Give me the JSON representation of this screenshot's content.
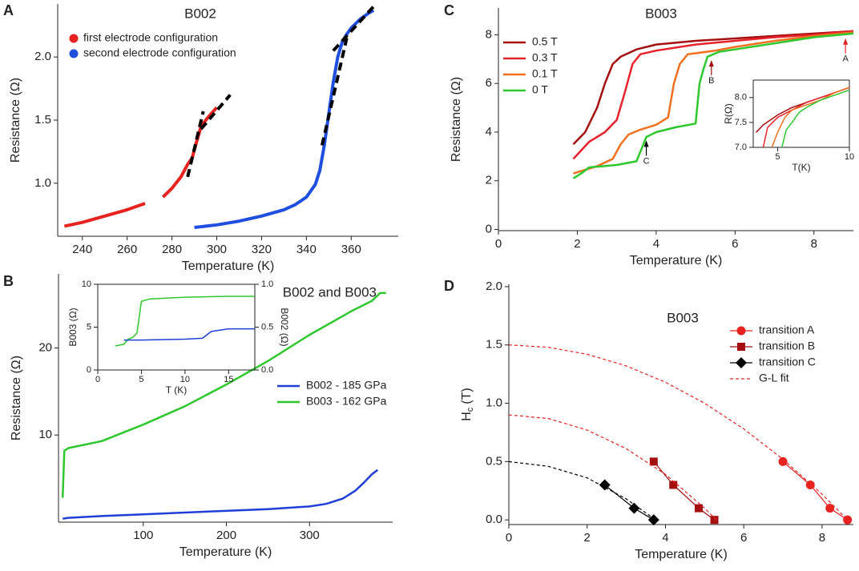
{
  "chart_data": [
    {
      "type": "line",
      "panel": "A",
      "title": "B002",
      "xlabel": "Temperature (K)",
      "ylabel": "Resistance (Ω)",
      "xlim": [
        229,
        381
      ],
      "xticks": [
        240,
        260,
        280,
        300,
        320,
        340,
        360
      ],
      "ylim": [
        0.58,
        2.42
      ],
      "yticks": [
        {
          "value": 1.0,
          "label": "1.0"
        },
        {
          "value": 1.5,
          "label": "1.5"
        },
        {
          "value": 2.0,
          "label": "2.0"
        }
      ],
      "legend": "upper left",
      "legend_marker": "circle",
      "series": [
        {
          "name": "first electrode configuration",
          "color": "#e8221e",
          "x": [
            232,
            240,
            250,
            260,
            268,
            272,
            276,
            280,
            284,
            287,
            289,
            291,
            293,
            296,
            300
          ],
          "values": [
            0.66,
            0.69,
            0.74,
            0.79,
            0.84,
            null,
            0.89,
            0.96,
            1.05,
            1.15,
            1.2,
            1.33,
            1.45,
            1.52,
            1.6
          ]
        },
        {
          "name": "second electrode configuration",
          "color": "#1f4fe0",
          "x": [
            290,
            300,
            310,
            320,
            330,
            335,
            340,
            344,
            346,
            348,
            350,
            352,
            354,
            356,
            358,
            360,
            364,
            368,
            370
          ],
          "values": [
            0.65,
            0.67,
            0.7,
            0.74,
            0.79,
            0.83,
            0.89,
            0.99,
            1.1,
            1.3,
            1.55,
            1.8,
            2.0,
            2.12,
            2.18,
            2.23,
            2.3,
            2.35,
            2.37
          ]
        },
        {
          "color": "#000000",
          "dashed": true,
          "x": [
            287,
            294
          ],
          "values": [
            1.05,
            1.57
          ]
        },
        {
          "color": "#000000",
          "dashed": true,
          "x": [
            293,
            306
          ],
          "values": [
            1.43,
            1.7
          ]
        },
        {
          "color": "#000000",
          "dashed": true,
          "x": [
            347,
            358
          ],
          "values": [
            1.3,
            2.15
          ]
        },
        {
          "color": "#000000",
          "dashed": true,
          "x": [
            352,
            370
          ],
          "values": [
            2.05,
            2.4
          ]
        }
      ]
    },
    {
      "type": "line",
      "panel": "B",
      "title": "B002 and B003",
      "xlabel": "Temperature (K)",
      "ylabel": "Resistance (Ω)",
      "xlim": [
        -2,
        400
      ],
      "xticks": [
        100,
        200,
        300
      ],
      "ylim": [
        0,
        28.5
      ],
      "yticks": [
        10,
        20
      ],
      "legend": "center right",
      "legend_marker": "line",
      "series": [
        {
          "name": "B002 - 185 GPa",
          "color": "#1f3fd8",
          "x": [
            3,
            10,
            50,
            100,
            150,
            200,
            250,
            300,
            320,
            340,
            355,
            365,
            375,
            382
          ],
          "values": [
            0.4,
            0.5,
            0.7,
            0.9,
            1.1,
            1.3,
            1.5,
            1.8,
            2.1,
            2.7,
            3.6,
            4.5,
            5.5,
            6.0
          ]
        },
        {
          "name": "B003 - 162 GPa",
          "color": "#2ec82e",
          "x": [
            3,
            5,
            10,
            50,
            100,
            150,
            200,
            250,
            300,
            350,
            375,
            385,
            392
          ],
          "values": [
            2.8,
            8.2,
            8.5,
            9.3,
            11.2,
            13.3,
            15.8,
            18.5,
            21.5,
            24.2,
            25.4,
            26.3,
            26.3
          ]
        }
      ],
      "inset": {
        "type": "line",
        "xlabel": "T (K)",
        "ylabel": "B003  (Ω)",
        "y2label": "B002  (Ω)",
        "xlim": [
          0,
          18
        ],
        "xticks": [
          0,
          5,
          10,
          15
        ],
        "ylim": [
          0,
          10
        ],
        "yticks": [
          0,
          5,
          10
        ],
        "y2lim": [
          0,
          1
        ],
        "y2ticks": [
          {
            "value": 0,
            "label": "0.0"
          },
          {
            "value": 0.5,
            "label": "0.5"
          },
          {
            "value": 1,
            "label": "1.0"
          }
        ],
        "series": [
          {
            "color": "#2ec82e",
            "x": [
              2,
              3,
              3.5,
              4,
              4.5,
              5,
              6,
              10,
              15,
              18
            ],
            "values": [
              2.8,
              3,
              3.6,
              3.8,
              4.3,
              8,
              8.3,
              8.5,
              8.6,
              8.6
            ]
          },
          {
            "color": "#1f3fd8",
            "axis": "y2",
            "x": [
              3,
              5,
              10,
              12,
              13,
              15,
              18
            ],
            "values": [
              0.35,
              0.35,
              0.36,
              0.37,
              0.45,
              0.48,
              0.48
            ]
          }
        ]
      }
    },
    {
      "type": "line",
      "panel": "C",
      "title": "B003",
      "xlabel": "Temperature (K)",
      "ylabel": "Resistance (Ω)",
      "xlim": [
        0,
        9
      ],
      "xticks": [
        0,
        2,
        4,
        6,
        8
      ],
      "ylim": [
        -0.05,
        9.1
      ],
      "yticks": [
        0,
        2,
        4,
        6,
        8
      ],
      "legend": "upper left",
      "legend_marker": "line",
      "series": [
        {
          "name": "0.5 T",
          "color": "#a50f0f",
          "x": [
            1.9,
            2.2,
            2.5,
            2.7,
            2.9,
            3.1,
            3.5,
            4,
            5,
            6,
            7,
            8,
            9
          ],
          "values": [
            3.5,
            4,
            5,
            6,
            6.8,
            7.1,
            7.4,
            7.6,
            7.75,
            7.85,
            7.95,
            8.05,
            8.15
          ]
        },
        {
          "name": "0.3 T",
          "color": "#e8222a",
          "x": [
            1.9,
            2.3,
            2.7,
            3.0,
            3.2,
            3.4,
            3.6,
            4,
            5,
            6,
            7,
            8,
            9
          ],
          "values": [
            2.9,
            3.6,
            4.0,
            4.5,
            5.6,
            6.8,
            7.2,
            7.35,
            7.6,
            7.75,
            7.9,
            8.0,
            8.15
          ]
        },
        {
          "name": "0.1 T",
          "color": "#f07020",
          "x": [
            1.9,
            2.5,
            2.9,
            3.1,
            3.3,
            3.6,
            4,
            4.3,
            4.45,
            4.6,
            4.8,
            5.5,
            6,
            7,
            8,
            9
          ],
          "values": [
            2.3,
            2.6,
            2.9,
            3.5,
            3.9,
            4.1,
            4.3,
            4.6,
            6,
            6.8,
            7.2,
            7.35,
            7.5,
            7.75,
            7.95,
            8.1
          ]
        },
        {
          "name": "0 T",
          "color": "#2ec82e",
          "x": [
            1.9,
            2.1,
            2.3,
            3,
            3.5,
            3.65,
            3.75,
            4,
            4.5,
            5,
            5.1,
            5.2,
            5.3,
            5.6,
            6,
            7,
            8,
            9
          ],
          "values": [
            2.1,
            2.3,
            2.55,
            2.65,
            2.8,
            3.4,
            3.8,
            4,
            4.2,
            4.35,
            6,
            6.6,
            7.1,
            7.3,
            7.4,
            7.65,
            7.9,
            8.05
          ]
        }
      ],
      "annotations": [
        {
          "text": "A",
          "x": 8.8,
          "y": 7.0,
          "color": "#e8222a"
        },
        {
          "text": "B",
          "x": 5.4,
          "y": 6.1,
          "color": "#a50f0f"
        },
        {
          "text": "C",
          "x": 3.75,
          "y": 2.8,
          "color": "#000000"
        }
      ],
      "inset": {
        "type": "line",
        "xlabel": "T(K)",
        "ylabel": "R(Ω)",
        "xlim": [
          3.3,
          10
        ],
        "xticks": [
          5,
          10
        ],
        "ylim": [
          7.0,
          8.35
        ],
        "yticks": [
          {
            "value": 7.0,
            "label": "7.0"
          },
          {
            "value": 7.5,
            "label": "7.5"
          },
          {
            "value": 8.0,
            "label": "8.0"
          }
        ],
        "series": [
          {
            "color": "#a50f0f",
            "x": [
              3.5,
              4,
              5,
              6,
              7,
              8,
              9,
              10
            ],
            "values": [
              7.3,
              7.45,
              7.65,
              7.8,
              7.9,
              8.0,
              8.1,
              8.2
            ]
          },
          {
            "color": "#e8222a",
            "x": [
              4.0,
              4.3,
              5,
              6,
              7,
              8,
              9,
              10
            ],
            "values": [
              7.0,
              7.4,
              7.6,
              7.75,
              7.9,
              8.0,
              8.1,
              8.2
            ]
          },
          {
            "color": "#f07020",
            "x": [
              4.6,
              5,
              5.5,
              6,
              7,
              8,
              9,
              10
            ],
            "values": [
              7.0,
              7.3,
              7.6,
              7.75,
              7.85,
              7.95,
              8.1,
              8.2
            ]
          },
          {
            "color": "#2ec82e",
            "x": [
              5.3,
              5.6,
              6,
              6.5,
              7,
              8,
              9,
              10
            ],
            "values": [
              7.0,
              7.35,
              7.5,
              7.7,
              7.8,
              7.95,
              8.05,
              8.15
            ]
          }
        ]
      }
    },
    {
      "type": "scatter",
      "panel": "D",
      "title": "B003",
      "xlabel": "Temperature (K)",
      "ylabel": [
        "H",
        "c",
        "(T)"
      ],
      "xlim": [
        0,
        8.8
      ],
      "xticks": [
        0,
        2,
        4,
        6,
        8
      ],
      "ylim": [
        -0.04,
        2.02
      ],
      "yticks": [
        {
          "value": 0,
          "label": "0.0"
        },
        {
          "value": 0.5,
          "label": "0.5"
        },
        {
          "value": 1.0,
          "label": "1.0"
        },
        {
          "value": 1.5,
          "label": "1.5"
        },
        {
          "value": 2.0,
          "label": "2.0"
        }
      ],
      "legend": "upper right",
      "series": [
        {
          "name": "transition A",
          "color": "#e8221e",
          "marker": "circle",
          "x": [
            7.0,
            7.7,
            8.2,
            8.65
          ],
          "values": [
            0.5,
            0.3,
            0.1,
            0
          ]
        },
        {
          "name": "transition B",
          "color": "#a50f0f",
          "marker": "square",
          "x": [
            3.7,
            4.2,
            4.85,
            5.25
          ],
          "values": [
            0.5,
            0.3,
            0.1,
            0
          ]
        },
        {
          "name": "transition C",
          "color": "#000000",
          "marker": "diamond",
          "x": [
            2.45,
            3.2,
            3.7
          ],
          "values": [
            0.3,
            0.1,
            0
          ]
        },
        {
          "name": "G-L fit",
          "color": "#e8221e",
          "dashed": true,
          "x": [
            0,
            1,
            2,
            3,
            4,
            5,
            6,
            7,
            8,
            8.65
          ],
          "values": [
            1.5,
            1.48,
            1.42,
            1.32,
            1.18,
            1.0,
            0.78,
            0.52,
            0.22,
            0
          ]
        },
        {
          "color": "#e8221e",
          "dashed": true,
          "x": [
            0,
            1,
            2,
            3,
            4,
            5,
            5.3
          ],
          "values": [
            0.9,
            0.87,
            0.77,
            0.61,
            0.39,
            0.1,
            0
          ]
        },
        {
          "color": "#000000",
          "dashed": true,
          "x": [
            0,
            1,
            2,
            3,
            3.75
          ],
          "values": [
            0.5,
            0.46,
            0.36,
            0.18,
            0
          ]
        }
      ]
    }
  ]
}
